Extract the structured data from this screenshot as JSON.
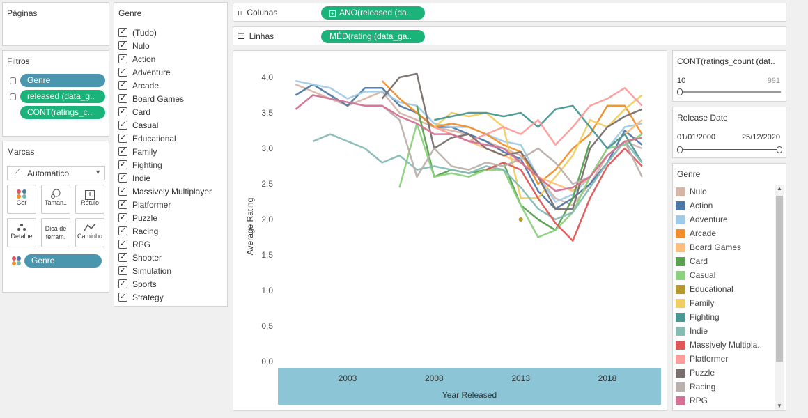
{
  "paginas": {
    "title": "Páginas"
  },
  "filtros": {
    "title": "Filtros",
    "pills": [
      {
        "label": "Genre",
        "color": "#4a96af"
      },
      {
        "label": "released (data_g..",
        "color": "#1ab37a"
      },
      {
        "label": "CONT(ratings_c..",
        "color": "#1ab37a"
      }
    ]
  },
  "marcas": {
    "title": "Marcas",
    "dropdown": "Automático",
    "buttons": [
      {
        "label": "Cor",
        "icon": "color-dots-icon"
      },
      {
        "label": "Taman..",
        "icon": "size-icon"
      },
      {
        "label": "Rótulo",
        "icon": "label-icon",
        "glyph": "T"
      },
      {
        "label": "Detalhe",
        "icon": "detail-icon"
      },
      {
        "label": "Dica de ferram.",
        "icon": "tooltip-icon"
      },
      {
        "label": "Caminho",
        "icon": "path-icon"
      }
    ],
    "pill": "Genre"
  },
  "genre_filter": {
    "title": "Genre",
    "items": [
      "(Tudo)",
      "Nulo",
      "Action",
      "Adventure",
      "Arcade",
      "Board Games",
      "Card",
      "Casual",
      "Educational",
      "Family",
      "Fighting",
      "Indie",
      "Massively Multiplayer",
      "Platformer",
      "Puzzle",
      "Racing",
      "RPG",
      "Shooter",
      "Simulation",
      "Sports",
      "Strategy"
    ],
    "check": "✓"
  },
  "shelves": {
    "columns_label": "Colunas",
    "columns_pill": "ANO(released (da..",
    "rows_label": "Linhas",
    "rows_pill": "MÉD(rating (data_ga.."
  },
  "ratings_count": {
    "title": "CONT(ratings_count (dat..",
    "min": "10",
    "max": "991"
  },
  "release_date": {
    "title": "Release Date",
    "start": "01/01/2000",
    "end": "25/12/2020"
  },
  "legend": {
    "title": "Genre",
    "items": [
      {
        "label": "Nulo",
        "color": "#d7b5a6"
      },
      {
        "label": "Action",
        "color": "#4e79a7"
      },
      {
        "label": "Adventure",
        "color": "#a0cbe8"
      },
      {
        "label": "Arcade",
        "color": "#f28e2b"
      },
      {
        "label": "Board Games",
        "color": "#ffbe7d"
      },
      {
        "label": "Card",
        "color": "#59a14f"
      },
      {
        "label": "Casual",
        "color": "#8cd17d"
      },
      {
        "label": "Educational",
        "color": "#b6992d"
      },
      {
        "label": "Family",
        "color": "#f1ce63"
      },
      {
        "label": "Fighting",
        "color": "#499894"
      },
      {
        "label": "Indie",
        "color": "#86bcb6"
      },
      {
        "label": "Massively Multipla..",
        "color": "#e15759"
      },
      {
        "label": "Platformer",
        "color": "#ff9d9a"
      },
      {
        "label": "Puzzle",
        "color": "#79706e"
      },
      {
        "label": "Racing",
        "color": "#bab0ac"
      },
      {
        "label": "RPG",
        "color": "#d37295"
      }
    ]
  },
  "chart_data": {
    "type": "line",
    "title": "",
    "xlabel": "Year Released",
    "ylabel": "Average Rating",
    "xlim": [
      2000,
      2020
    ],
    "ylim": [
      0,
      4
    ],
    "x_ticks": [
      "2003",
      "2008",
      "2013",
      "2018"
    ],
    "y_ticks": [
      "0,0",
      "0,5",
      "1,0",
      "1,5",
      "2,0",
      "2,5",
      "3,0",
      "3,5",
      "4,0"
    ],
    "series": [
      {
        "name": "Nulo",
        "color": "#d7b5a6",
        "x": [
          2000,
          2001,
          2002,
          2003,
          2004,
          2005,
          2006,
          2007,
          2008,
          2009,
          2010,
          2011,
          2012,
          2013,
          2014,
          2015,
          2016,
          2017,
          2018,
          2019,
          2020
        ],
        "y": [
          3.9,
          3.8,
          3.7,
          3.6,
          3.7,
          3.8,
          3.5,
          3.4,
          3.3,
          3.25,
          3.2,
          3.1,
          3.0,
          2.9,
          2.6,
          2.3,
          2.2,
          2.5,
          2.9,
          3.1,
          3.0
        ]
      },
      {
        "name": "Action",
        "color": "#4e79a7",
        "x": [
          2000,
          2001,
          2002,
          2003,
          2004,
          2005,
          2006,
          2007,
          2008,
          2009,
          2010,
          2011,
          2012,
          2013,
          2014,
          2015,
          2016,
          2017,
          2018,
          2019,
          2020
        ],
        "y": [
          3.75,
          3.9,
          3.75,
          3.6,
          3.85,
          3.85,
          3.6,
          3.5,
          3.3,
          3.3,
          3.2,
          3.1,
          2.95,
          2.85,
          2.4,
          2.15,
          2.3,
          2.5,
          2.8,
          3.25,
          3.05
        ]
      },
      {
        "name": "Adventure",
        "color": "#a0cbe8",
        "x": [
          2000,
          2001,
          2002,
          2003,
          2004,
          2005,
          2006,
          2007,
          2008,
          2009,
          2010,
          2011,
          2012,
          2013,
          2014,
          2015,
          2016,
          2017,
          2018,
          2019,
          2020
        ],
        "y": [
          3.95,
          3.9,
          3.85,
          3.7,
          3.8,
          3.8,
          3.65,
          3.6,
          3.35,
          3.3,
          3.3,
          3.2,
          3.1,
          3.05,
          2.6,
          2.25,
          2.35,
          2.6,
          3.0,
          3.3,
          3.35
        ]
      },
      {
        "name": "Arcade",
        "color": "#f28e2b",
        "x": [
          2005,
          2006,
          2007,
          2008,
          2009,
          2010,
          2011,
          2012,
          2013,
          2014,
          2015,
          2016,
          2017,
          2018,
          2019,
          2020
        ],
        "y": [
          3.95,
          3.7,
          3.5,
          3.3,
          3.35,
          3.3,
          3.2,
          3.05,
          2.95,
          2.5,
          2.7,
          3.0,
          3.2,
          3.6,
          3.6,
          3.2
        ]
      },
      {
        "name": "Board Games",
        "color": "#ffbe7d",
        "x": [
          2008,
          2009,
          2010,
          2011,
          2012,
          2013,
          2014,
          2015,
          2016,
          2017,
          2018,
          2019,
          2020
        ],
        "y": [
          3.3,
          3.2,
          3.1,
          3.0,
          2.9,
          2.8,
          2.6,
          2.5,
          2.4,
          2.6,
          3.0,
          3.2,
          3.4
        ]
      },
      {
        "name": "Card",
        "color": "#59a14f",
        "x": [
          2007,
          2008,
          2009,
          2010,
          2011,
          2012,
          2013,
          2014,
          2015,
          2016,
          2017
        ],
        "y": [
          3.6,
          2.6,
          2.7,
          2.65,
          2.7,
          2.8,
          2.2,
          2.0,
          1.85,
          2.3,
          3.1
        ]
      },
      {
        "name": "Casual",
        "color": "#8cd17d",
        "x": [
          2006,
          2007,
          2008,
          2009,
          2010,
          2011,
          2012,
          2013,
          2014,
          2015,
          2016,
          2017,
          2018,
          2019,
          2020
        ],
        "y": [
          2.45,
          3.35,
          2.6,
          2.65,
          2.6,
          2.7,
          2.7,
          2.2,
          1.75,
          1.85,
          2.1,
          2.6,
          3.0,
          3.05,
          3.2
        ]
      },
      {
        "name": "Educational",
        "color": "#b6992d",
        "x": [
          2013
        ],
        "y": [
          2.0
        ]
      },
      {
        "name": "Family",
        "color": "#f1ce63",
        "x": [
          2008,
          2009,
          2010,
          2011,
          2012,
          2013,
          2014,
          2015,
          2016,
          2017,
          2018,
          2019,
          2020
        ],
        "y": [
          3.3,
          3.5,
          3.45,
          3.5,
          3.3,
          2.3,
          2.3,
          2.6,
          2.9,
          3.4,
          3.3,
          3.55,
          3.75
        ]
      },
      {
        "name": "Fighting",
        "color": "#499894",
        "x": [
          2008,
          2009,
          2010,
          2011,
          2012,
          2013,
          2014,
          2015,
          2016,
          2017,
          2018,
          2019,
          2020
        ],
        "y": [
          3.4,
          3.45,
          3.5,
          3.5,
          3.45,
          3.5,
          3.3,
          3.55,
          3.6,
          3.3,
          3.0,
          3.2,
          2.8
        ]
      },
      {
        "name": "Indie",
        "color": "#86bcb6",
        "x": [
          2001,
          2002,
          2003,
          2004,
          2005,
          2006,
          2007,
          2008,
          2009,
          2010,
          2011,
          2012,
          2013,
          2014,
          2015,
          2016,
          2017,
          2018,
          2019,
          2020
        ],
        "y": [
          3.1,
          3.2,
          3.1,
          3.0,
          2.8,
          2.9,
          2.7,
          2.75,
          2.7,
          2.65,
          2.75,
          2.7,
          2.45,
          2.15,
          2.0,
          2.1,
          2.45,
          2.8,
          3.1,
          2.8
        ]
      },
      {
        "name": "Massively Multiplayer",
        "color": "#e15759",
        "x": [
          2011,
          2012,
          2013,
          2014,
          2015,
          2016,
          2017,
          2018,
          2019,
          2020
        ],
        "y": [
          2.7,
          2.8,
          2.7,
          2.3,
          1.95,
          1.7,
          2.3,
          2.75,
          3.0,
          2.75
        ]
      },
      {
        "name": "Platformer",
        "color": "#ff9d9a",
        "x": [
          2008,
          2009,
          2010,
          2011,
          2012,
          2013,
          2014,
          2015,
          2016,
          2017,
          2018,
          2019,
          2020
        ],
        "y": [
          3.3,
          3.2,
          3.1,
          3.2,
          3.3,
          3.2,
          3.4,
          3.05,
          3.3,
          3.6,
          3.7,
          3.85,
          3.6
        ]
      },
      {
        "name": "Puzzle",
        "color": "#79706e",
        "x": [
          2005,
          2006,
          2007,
          2008,
          2009,
          2010,
          2011,
          2012,
          2013,
          2014,
          2015,
          2016,
          2017,
          2018,
          2019,
          2020
        ],
        "y": [
          3.7,
          4.0,
          4.05,
          3.0,
          3.15,
          3.2,
          3.0,
          2.9,
          2.95,
          2.6,
          2.15,
          2.15,
          3.0,
          3.3,
          3.45,
          3.55
        ]
      },
      {
        "name": "Racing",
        "color": "#bab0ac",
        "x": [
          2005,
          2006,
          2007,
          2008,
          2009,
          2010,
          2011,
          2012,
          2013,
          2014,
          2015,
          2016,
          2017,
          2018,
          2019,
          2020
        ],
        "y": [
          3.6,
          3.4,
          2.6,
          3.0,
          2.75,
          2.7,
          2.8,
          2.75,
          2.85,
          3.0,
          2.8,
          2.5,
          2.6,
          2.9,
          3.1,
          2.6
        ]
      },
      {
        "name": "RPG",
        "color": "#d37295",
        "x": [
          2000,
          2001,
          2002,
          2003,
          2004,
          2005,
          2006,
          2007,
          2008,
          2009,
          2010,
          2011,
          2012,
          2013,
          2014,
          2015,
          2016,
          2017,
          2018,
          2019,
          2020
        ],
        "y": [
          3.55,
          3.75,
          3.7,
          3.65,
          3.6,
          3.6,
          3.45,
          3.35,
          3.2,
          3.2,
          3.1,
          3.05,
          3.0,
          2.8,
          2.6,
          2.4,
          2.45,
          2.6,
          2.9,
          3.1,
          3.15
        ]
      }
    ]
  }
}
